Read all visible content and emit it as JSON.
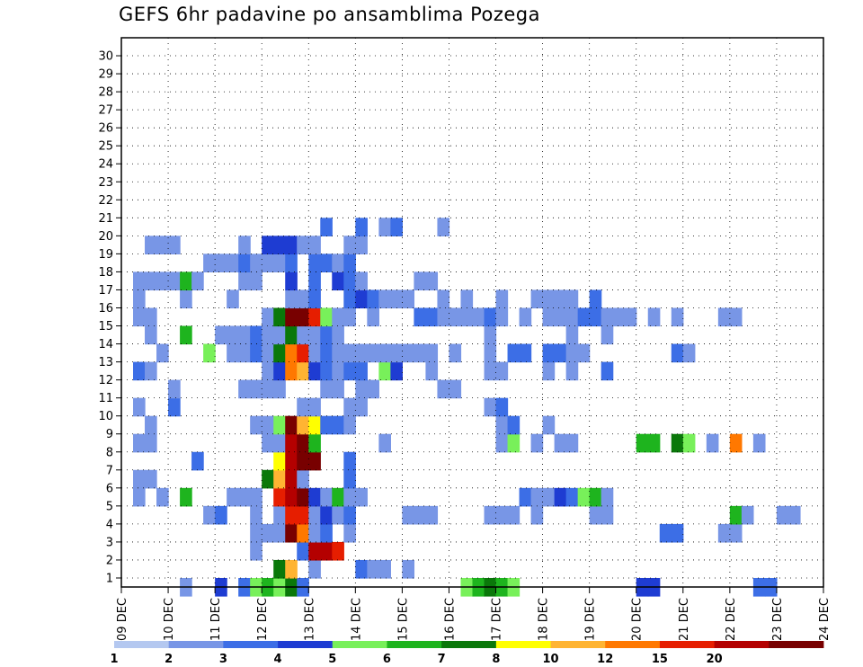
{
  "title": "GEFS 6hr padavine po ansamblima Pozega",
  "chart_data": {
    "type": "heatmap",
    "title": "GEFS 6hr padavine po ansamblima Pozega",
    "xlabel": "",
    "ylabel": "",
    "x_ticks": [
      "09 DEC",
      "10 DEC",
      "11 DEC",
      "12 DEC",
      "13 DEC",
      "14 DEC",
      "15 DEC",
      "16 DEC",
      "17 DEC",
      "18 DEC",
      "19 DEC",
      "20 DEC",
      "21 DEC",
      "22 DEC",
      "23 DEC",
      "24 DEC"
    ],
    "y_ticks": [
      "1",
      "2",
      "3",
      "4",
      "5",
      "6",
      "7",
      "8",
      "9",
      "10",
      "11",
      "12",
      "13",
      "14",
      "15",
      "16",
      "17",
      "18",
      "19",
      "20",
      "21",
      "22",
      "23",
      "24",
      "25",
      "26",
      "27",
      "28",
      "29",
      "30"
    ],
    "xlim": [
      0,
      60
    ],
    "ylim": [
      0,
      30
    ],
    "grid": true,
    "colorbar": {
      "labels": [
        "1",
        "2",
        "3",
        "4",
        "5",
        "6",
        "7",
        "8",
        "10",
        "12",
        "15",
        "20"
      ],
      "colors": [
        "#b4c8f0",
        "#7896e6",
        "#3c6ee6",
        "#1e3cd2",
        "#78f05a",
        "#1eb41e",
        "#0a780a",
        "#ffff00",
        "#ffb432",
        "#ff7800",
        "#e61e00",
        "#b40000",
        "#780000"
      ]
    },
    "cells": [
      [
        5,
        0,
        1
      ],
      [
        8,
        0,
        3
      ],
      [
        10,
        0,
        2
      ],
      [
        11,
        0,
        4
      ],
      [
        12,
        0,
        5
      ],
      [
        13,
        0,
        4
      ],
      [
        14,
        0,
        6
      ],
      [
        15,
        0,
        2
      ],
      [
        29,
        0,
        4
      ],
      [
        30,
        0,
        5
      ],
      [
        31,
        0,
        6
      ],
      [
        32,
        0,
        5
      ],
      [
        33,
        0,
        4
      ],
      [
        44,
        0,
        3
      ],
      [
        45,
        0,
        3
      ],
      [
        54,
        0,
        2
      ],
      [
        55,
        0,
        2
      ],
      [
        13,
        1,
        6
      ],
      [
        14,
        1,
        8
      ],
      [
        16,
        1,
        1
      ],
      [
        20,
        1,
        2
      ],
      [
        21,
        1,
        1
      ],
      [
        22,
        1,
        1
      ],
      [
        24,
        1,
        1
      ],
      [
        11,
        2,
        1
      ],
      [
        15,
        2,
        2
      ],
      [
        16,
        2,
        11
      ],
      [
        17,
        2,
        11
      ],
      [
        18,
        2,
        10
      ],
      [
        11,
        3,
        1
      ],
      [
        12,
        3,
        1
      ],
      [
        13,
        3,
        1
      ],
      [
        14,
        3,
        12
      ],
      [
        15,
        3,
        9
      ],
      [
        16,
        3,
        1
      ],
      [
        17,
        3,
        2
      ],
      [
        19,
        3,
        1
      ],
      [
        46,
        3,
        2
      ],
      [
        47,
        3,
        2
      ],
      [
        51,
        3,
        1
      ],
      [
        52,
        3,
        1
      ],
      [
        7,
        4,
        1
      ],
      [
        8,
        4,
        2
      ],
      [
        11,
        4,
        1
      ],
      [
        13,
        4,
        1
      ],
      [
        14,
        4,
        10
      ],
      [
        15,
        4,
        10
      ],
      [
        16,
        4,
        1
      ],
      [
        17,
        4,
        3
      ],
      [
        18,
        4,
        1
      ],
      [
        19,
        4,
        2
      ],
      [
        24,
        4,
        1
      ],
      [
        25,
        4,
        1
      ],
      [
        26,
        4,
        1
      ],
      [
        31,
        4,
        1
      ],
      [
        32,
        4,
        1
      ],
      [
        33,
        4,
        1
      ],
      [
        35,
        4,
        1
      ],
      [
        40,
        4,
        1
      ],
      [
        41,
        4,
        1
      ],
      [
        52,
        4,
        5
      ],
      [
        53,
        4,
        1
      ],
      [
        56,
        4,
        1
      ],
      [
        57,
        4,
        1
      ],
      [
        1,
        5,
        1
      ],
      [
        3,
        5,
        1
      ],
      [
        5,
        5,
        5
      ],
      [
        9,
        5,
        1
      ],
      [
        10,
        5,
        1
      ],
      [
        11,
        5,
        1
      ],
      [
        13,
        5,
        10
      ],
      [
        14,
        5,
        11
      ],
      [
        15,
        5,
        12
      ],
      [
        16,
        5,
        3
      ],
      [
        17,
        5,
        1
      ],
      [
        18,
        5,
        5
      ],
      [
        19,
        5,
        1
      ],
      [
        20,
        5,
        1
      ],
      [
        34,
        5,
        2
      ],
      [
        35,
        5,
        1
      ],
      [
        36,
        5,
        1
      ],
      [
        37,
        5,
        3
      ],
      [
        38,
        5,
        2
      ],
      [
        39,
        5,
        4
      ],
      [
        40,
        5,
        5
      ],
      [
        41,
        5,
        1
      ],
      [
        1,
        6,
        1
      ],
      [
        2,
        6,
        1
      ],
      [
        12,
        6,
        6
      ],
      [
        13,
        6,
        8
      ],
      [
        14,
        6,
        11
      ],
      [
        15,
        6,
        1
      ],
      [
        19,
        6,
        2
      ],
      [
        6,
        7,
        2
      ],
      [
        13,
        7,
        7
      ],
      [
        14,
        7,
        11
      ],
      [
        15,
        7,
        12
      ],
      [
        16,
        7,
        12
      ],
      [
        19,
        7,
        2
      ],
      [
        1,
        8,
        1
      ],
      [
        2,
        8,
        1
      ],
      [
        12,
        8,
        1
      ],
      [
        13,
        8,
        1
      ],
      [
        14,
        8,
        11
      ],
      [
        15,
        8,
        12
      ],
      [
        16,
        8,
        5
      ],
      [
        22,
        8,
        1
      ],
      [
        32,
        8,
        1
      ],
      [
        33,
        8,
        4
      ],
      [
        35,
        8,
        1
      ],
      [
        37,
        8,
        1
      ],
      [
        38,
        8,
        1
      ],
      [
        44,
        8,
        5
      ],
      [
        45,
        8,
        5
      ],
      [
        47,
        8,
        6
      ],
      [
        48,
        8,
        4
      ],
      [
        50,
        8,
        1
      ],
      [
        52,
        8,
        9
      ],
      [
        54,
        8,
        1
      ],
      [
        2,
        9,
        1
      ],
      [
        11,
        9,
        1
      ],
      [
        12,
        9,
        1
      ],
      [
        13,
        9,
        4
      ],
      [
        14,
        9,
        12
      ],
      [
        15,
        9,
        8
      ],
      [
        16,
        9,
        7
      ],
      [
        17,
        9,
        2
      ],
      [
        18,
        9,
        2
      ],
      [
        19,
        9,
        1
      ],
      [
        32,
        9,
        1
      ],
      [
        33,
        9,
        2
      ],
      [
        36,
        9,
        1
      ],
      [
        1,
        10,
        1
      ],
      [
        4,
        10,
        2
      ],
      [
        15,
        10,
        1
      ],
      [
        16,
        10,
        1
      ],
      [
        19,
        10,
        1
      ],
      [
        20,
        10,
        1
      ],
      [
        31,
        10,
        1
      ],
      [
        32,
        10,
        2
      ],
      [
        4,
        11,
        1
      ],
      [
        10,
        11,
        1
      ],
      [
        11,
        11,
        1
      ],
      [
        12,
        11,
        1
      ],
      [
        13,
        11,
        1
      ],
      [
        17,
        11,
        1
      ],
      [
        18,
        11,
        1
      ],
      [
        20,
        11,
        1
      ],
      [
        21,
        11,
        1
      ],
      [
        27,
        11,
        1
      ],
      [
        28,
        11,
        1
      ],
      [
        1,
        12,
        2
      ],
      [
        2,
        12,
        1
      ],
      [
        12,
        12,
        1
      ],
      [
        13,
        12,
        3
      ],
      [
        14,
        12,
        9
      ],
      [
        15,
        12,
        8
      ],
      [
        16,
        12,
        3
      ],
      [
        17,
        12,
        2
      ],
      [
        18,
        12,
        1
      ],
      [
        19,
        12,
        2
      ],
      [
        20,
        12,
        2
      ],
      [
        22,
        12,
        4
      ],
      [
        23,
        12,
        3
      ],
      [
        26,
        12,
        1
      ],
      [
        31,
        12,
        1
      ],
      [
        32,
        12,
        1
      ],
      [
        36,
        12,
        1
      ],
      [
        38,
        12,
        1
      ],
      [
        41,
        12,
        2
      ],
      [
        3,
        13,
        1
      ],
      [
        7,
        13,
        4
      ],
      [
        9,
        13,
        1
      ],
      [
        10,
        13,
        1
      ],
      [
        11,
        13,
        2
      ],
      [
        12,
        13,
        1
      ],
      [
        13,
        13,
        6
      ],
      [
        14,
        13,
        9
      ],
      [
        15,
        13,
        10
      ],
      [
        16,
        13,
        1
      ],
      [
        17,
        13,
        2
      ],
      [
        18,
        13,
        1
      ],
      [
        19,
        13,
        1
      ],
      [
        20,
        13,
        1
      ],
      [
        21,
        13,
        1
      ],
      [
        22,
        13,
        1
      ],
      [
        23,
        13,
        1
      ],
      [
        24,
        13,
        1
      ],
      [
        25,
        13,
        1
      ],
      [
        26,
        13,
        1
      ],
      [
        28,
        13,
        1
      ],
      [
        31,
        13,
        1
      ],
      [
        33,
        13,
        2
      ],
      [
        34,
        13,
        2
      ],
      [
        36,
        13,
        2
      ],
      [
        37,
        13,
        2
      ],
      [
        38,
        13,
        1
      ],
      [
        39,
        13,
        1
      ],
      [
        47,
        13,
        2
      ],
      [
        48,
        13,
        1
      ],
      [
        2,
        14,
        1
      ],
      [
        5,
        14,
        5
      ],
      [
        8,
        14,
        1
      ],
      [
        9,
        14,
        1
      ],
      [
        10,
        14,
        1
      ],
      [
        11,
        14,
        2
      ],
      [
        12,
        14,
        1
      ],
      [
        13,
        14,
        1
      ],
      [
        14,
        14,
        6
      ],
      [
        15,
        14,
        1
      ],
      [
        16,
        14,
        1
      ],
      [
        17,
        14,
        2
      ],
      [
        18,
        14,
        1
      ],
      [
        31,
        14,
        1
      ],
      [
        38,
        14,
        1
      ],
      [
        41,
        14,
        1
      ],
      [
        1,
        15,
        1
      ],
      [
        2,
        15,
        1
      ],
      [
        12,
        15,
        1
      ],
      [
        13,
        15,
        6
      ],
      [
        14,
        15,
        12
      ],
      [
        15,
        15,
        12
      ],
      [
        16,
        15,
        10
      ],
      [
        17,
        15,
        4
      ],
      [
        18,
        15,
        1
      ],
      [
        19,
        15,
        1
      ],
      [
        21,
        15,
        1
      ],
      [
        25,
        15,
        2
      ],
      [
        26,
        15,
        2
      ],
      [
        27,
        15,
        1
      ],
      [
        28,
        15,
        1
      ],
      [
        29,
        15,
        1
      ],
      [
        30,
        15,
        1
      ],
      [
        31,
        15,
        2
      ],
      [
        32,
        15,
        1
      ],
      [
        34,
        15,
        1
      ],
      [
        36,
        15,
        1
      ],
      [
        37,
        15,
        1
      ],
      [
        38,
        15,
        1
      ],
      [
        39,
        15,
        2
      ],
      [
        40,
        15,
        2
      ],
      [
        41,
        15,
        1
      ],
      [
        42,
        15,
        1
      ],
      [
        43,
        15,
        1
      ],
      [
        45,
        15,
        1
      ],
      [
        47,
        15,
        1
      ],
      [
        51,
        15,
        1
      ],
      [
        52,
        15,
        1
      ],
      [
        1,
        16,
        1
      ],
      [
        5,
        16,
        1
      ],
      [
        9,
        16,
        1
      ],
      [
        14,
        16,
        1
      ],
      [
        15,
        16,
        1
      ],
      [
        16,
        16,
        2
      ],
      [
        19,
        16,
        2
      ],
      [
        20,
        16,
        3
      ],
      [
        21,
        16,
        2
      ],
      [
        22,
        16,
        1
      ],
      [
        23,
        16,
        1
      ],
      [
        24,
        16,
        1
      ],
      [
        27,
        16,
        1
      ],
      [
        29,
        16,
        1
      ],
      [
        32,
        16,
        1
      ],
      [
        35,
        16,
        1
      ],
      [
        36,
        16,
        1
      ],
      [
        37,
        16,
        1
      ],
      [
        38,
        16,
        1
      ],
      [
        40,
        16,
        2
      ],
      [
        1,
        17,
        1
      ],
      [
        2,
        17,
        1
      ],
      [
        3,
        17,
        1
      ],
      [
        4,
        17,
        1
      ],
      [
        5,
        17,
        5
      ],
      [
        6,
        17,
        1
      ],
      [
        10,
        17,
        1
      ],
      [
        11,
        17,
        1
      ],
      [
        14,
        17,
        3
      ],
      [
        16,
        17,
        2
      ],
      [
        18,
        17,
        3
      ],
      [
        19,
        17,
        2
      ],
      [
        20,
        17,
        1
      ],
      [
        25,
        17,
        1
      ],
      [
        26,
        17,
        1
      ],
      [
        7,
        18,
        1
      ],
      [
        8,
        18,
        1
      ],
      [
        9,
        18,
        1
      ],
      [
        10,
        18,
        2
      ],
      [
        11,
        18,
        1
      ],
      [
        12,
        18,
        1
      ],
      [
        13,
        18,
        1
      ],
      [
        14,
        18,
        2
      ],
      [
        16,
        18,
        2
      ],
      [
        17,
        18,
        2
      ],
      [
        18,
        18,
        1
      ],
      [
        19,
        18,
        2
      ],
      [
        2,
        19,
        1
      ],
      [
        3,
        19,
        1
      ],
      [
        4,
        19,
        1
      ],
      [
        10,
        19,
        1
      ],
      [
        12,
        19,
        3
      ],
      [
        13,
        19,
        3
      ],
      [
        14,
        19,
        3
      ],
      [
        15,
        19,
        1
      ],
      [
        16,
        19,
        1
      ],
      [
        19,
        19,
        1
      ],
      [
        20,
        19,
        1
      ],
      [
        17,
        20,
        2
      ],
      [
        20,
        20,
        2
      ],
      [
        22,
        20,
        1
      ],
      [
        23,
        20,
        2
      ],
      [
        27,
        20,
        1
      ]
    ]
  }
}
